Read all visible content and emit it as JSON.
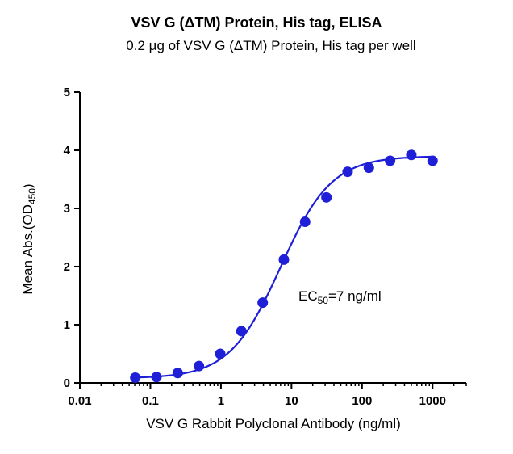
{
  "chart_data": {
    "type": "scatter",
    "title": "VSV G (ΔTM) Protein, His tag, ELISA",
    "subtitle": "0.2 µg of VSV G (ΔTM) Protein, His tag per well",
    "xlabel": "VSV G Rabbit Polyclonal Antibody (ng/ml)",
    "ylabel": {
      "prefix": "Mean Abs.(OD",
      "sub": "450",
      "suffix": ")"
    },
    "xscale": "log",
    "xlim": [
      0.01,
      3000
    ],
    "ylim": [
      0,
      5
    ],
    "xticks": [
      0.01,
      0.1,
      1,
      10,
      100,
      1000
    ],
    "xtick_labels": [
      "0.01",
      "0.1",
      "1",
      "10",
      "100",
      "1000"
    ],
    "yticks": [
      0,
      1,
      2,
      3,
      4,
      5
    ],
    "ytick_labels": [
      "0",
      "1",
      "2",
      "3",
      "4",
      "5"
    ],
    "grid": false,
    "legend": "none",
    "color": "#1f1fd8",
    "annotation": {
      "prefix": "EC",
      "sub": "50",
      "suffix": "=7 ng/ml"
    },
    "series": [
      {
        "x": [
          0.061,
          0.122,
          0.244,
          0.488,
          0.977,
          1.95,
          3.91,
          7.81,
          15.6,
          31.3,
          62.5,
          125,
          250,
          500,
          1000
        ],
        "y": [
          0.09,
          0.1,
          0.17,
          0.29,
          0.5,
          0.89,
          1.38,
          2.12,
          2.77,
          3.19,
          3.63,
          3.7,
          3.82,
          3.92,
          3.82
        ]
      }
    ],
    "fit": {
      "bottom": 0.08,
      "top": 3.9,
      "ec50": 7,
      "hill": 1.2
    }
  }
}
